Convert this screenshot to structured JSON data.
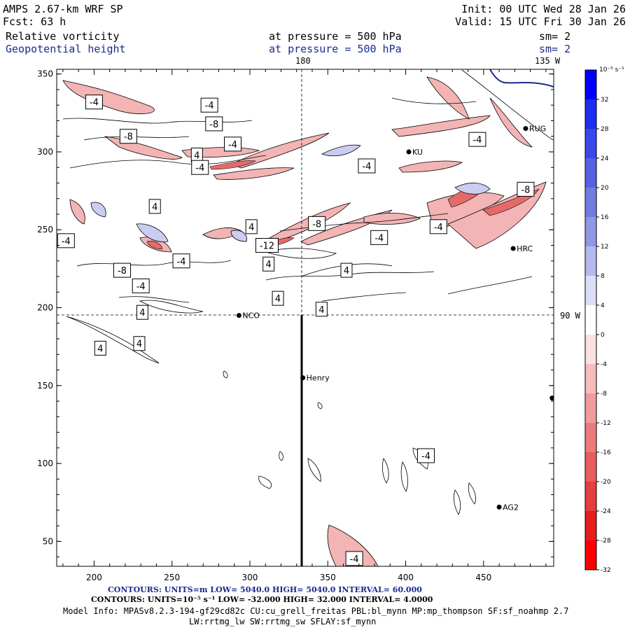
{
  "header": {
    "model": "AMPS 2.67-km WRF SP",
    "fcst": "Fcst:   63 h",
    "init": "Init: 00 UTC Wed 28 Jan 26",
    "valid": "Valid: 15 UTC Fri 30 Jan 26",
    "field1": "Relative vorticity",
    "pressure1": "at pressure =  500 hPa",
    "sm1": "sm= 2",
    "field2": "Geopotential height",
    "pressure2": "at pressure =  500 hPa",
    "sm2": "sm= 2"
  },
  "map": {
    "lon_labels": {
      "top_180": "180",
      "top_135w": "135 W",
      "right_90w": "90 W"
    },
    "y_ticks": [
      "350",
      "300",
      "250",
      "200",
      "150",
      "100",
      "50"
    ],
    "x_ticks": [
      "200",
      "250",
      "300",
      "350",
      "400",
      "450"
    ],
    "stations": [
      {
        "name": "NCO",
        "x": 293,
        "y": 195
      },
      {
        "name": "Henry",
        "x": 334,
        "y": 155
      },
      {
        "name": "KU",
        "x": 402,
        "y": 300
      },
      {
        "name": "HRC",
        "x": 469,
        "y": 238
      },
      {
        "name": "AG2",
        "x": 460,
        "y": 72
      },
      {
        "name": "RUG",
        "x": 477,
        "y": 315
      },
      {
        "name": "",
        "x": 494,
        "y": 142
      },
      {
        "name": "",
        "x": 426,
        "y": 355
      }
    ],
    "contour_labels": [
      {
        "t": "-4",
        "x": 200,
        "y": 332
      },
      {
        "t": "-4",
        "x": 274,
        "y": 330
      },
      {
        "t": "-8",
        "x": 277,
        "y": 318
      },
      {
        "t": "-8",
        "x": 222,
        "y": 310
      },
      {
        "t": "4",
        "x": 266,
        "y": 298
      },
      {
        "t": "-4",
        "x": 289,
        "y": 305
      },
      {
        "t": "-4",
        "x": 268,
        "y": 290
      },
      {
        "t": "-4",
        "x": 375,
        "y": 291
      },
      {
        "t": "-4",
        "x": 446,
        "y": 308
      },
      {
        "t": "4",
        "x": 239,
        "y": 265
      },
      {
        "t": "-8",
        "x": 477,
        "y": 276
      },
      {
        "t": "-8",
        "x": 343,
        "y": 254
      },
      {
        "t": "-4",
        "x": 421,
        "y": 252
      },
      {
        "t": "-4",
        "x": 383,
        "y": 245
      },
      {
        "t": "-4",
        "x": 182,
        "y": 243
      },
      {
        "t": "-12",
        "x": 311,
        "y": 240
      },
      {
        "t": "4",
        "x": 301,
        "y": 252
      },
      {
        "t": "-4",
        "x": 256,
        "y": 230
      },
      {
        "t": "4",
        "x": 312,
        "y": 228
      },
      {
        "t": "-8",
        "x": 218,
        "y": 224
      },
      {
        "t": "-4",
        "x": 230,
        "y": 214
      },
      {
        "t": "4",
        "x": 362,
        "y": 224
      },
      {
        "t": "4",
        "x": 318,
        "y": 206
      },
      {
        "t": "4",
        "x": 346,
        "y": 199
      },
      {
        "t": "4",
        "x": 231,
        "y": 197
      },
      {
        "t": "4",
        "x": 172,
        "y": 183
      },
      {
        "t": "4",
        "x": 229,
        "y": 177
      },
      {
        "t": "4",
        "x": 204,
        "y": 174
      },
      {
        "t": "-4",
        "x": 413,
        "y": 105
      },
      {
        "t": "-4",
        "x": 367,
        "y": 39
      }
    ]
  },
  "colorbar": {
    "unit": "10⁻⁵ s⁻¹",
    "labels": [
      "32",
      "28",
      "24",
      "20",
      "16",
      "12",
      "8",
      "4",
      "0",
      "-4",
      "-8",
      "-12",
      "-16",
      "-20",
      "-24",
      "-28",
      "-32"
    ],
    "colors": [
      "#0000ff",
      "#1c2ef2",
      "#3848ea",
      "#5562e2",
      "#727de0",
      "#9098e4",
      "#b4b9ee",
      "#dcdef8",
      "#ffffff",
      "#fbe1e1",
      "#f6bcbc",
      "#f19c9c",
      "#ec7c7c",
      "#e85d5d",
      "#e63e3e",
      "#e41e1e",
      "#ff0000"
    ]
  },
  "footer": {
    "contours1": "CONTOURS:  UNITS=m  LOW=  5040.0          HIGH=  5040.0          INTERVAL=   60.000",
    "contours2": "CONTOURS:  UNITS=10⁻⁵ s⁻¹   LOW= -32.000        HIGH=  32.000        INTERVAL=   4.0000",
    "info1": "Model Info: MPASv8.2.3-194-gf29cd82c CU:cu_grell_freitas PBL:bl_mynn MP:mp_thompson SF:sf_noahmp 2.7",
    "info2": "LW:rrtmg_lw SW:rrtmg_sw SFLAY:sf_mynn"
  }
}
